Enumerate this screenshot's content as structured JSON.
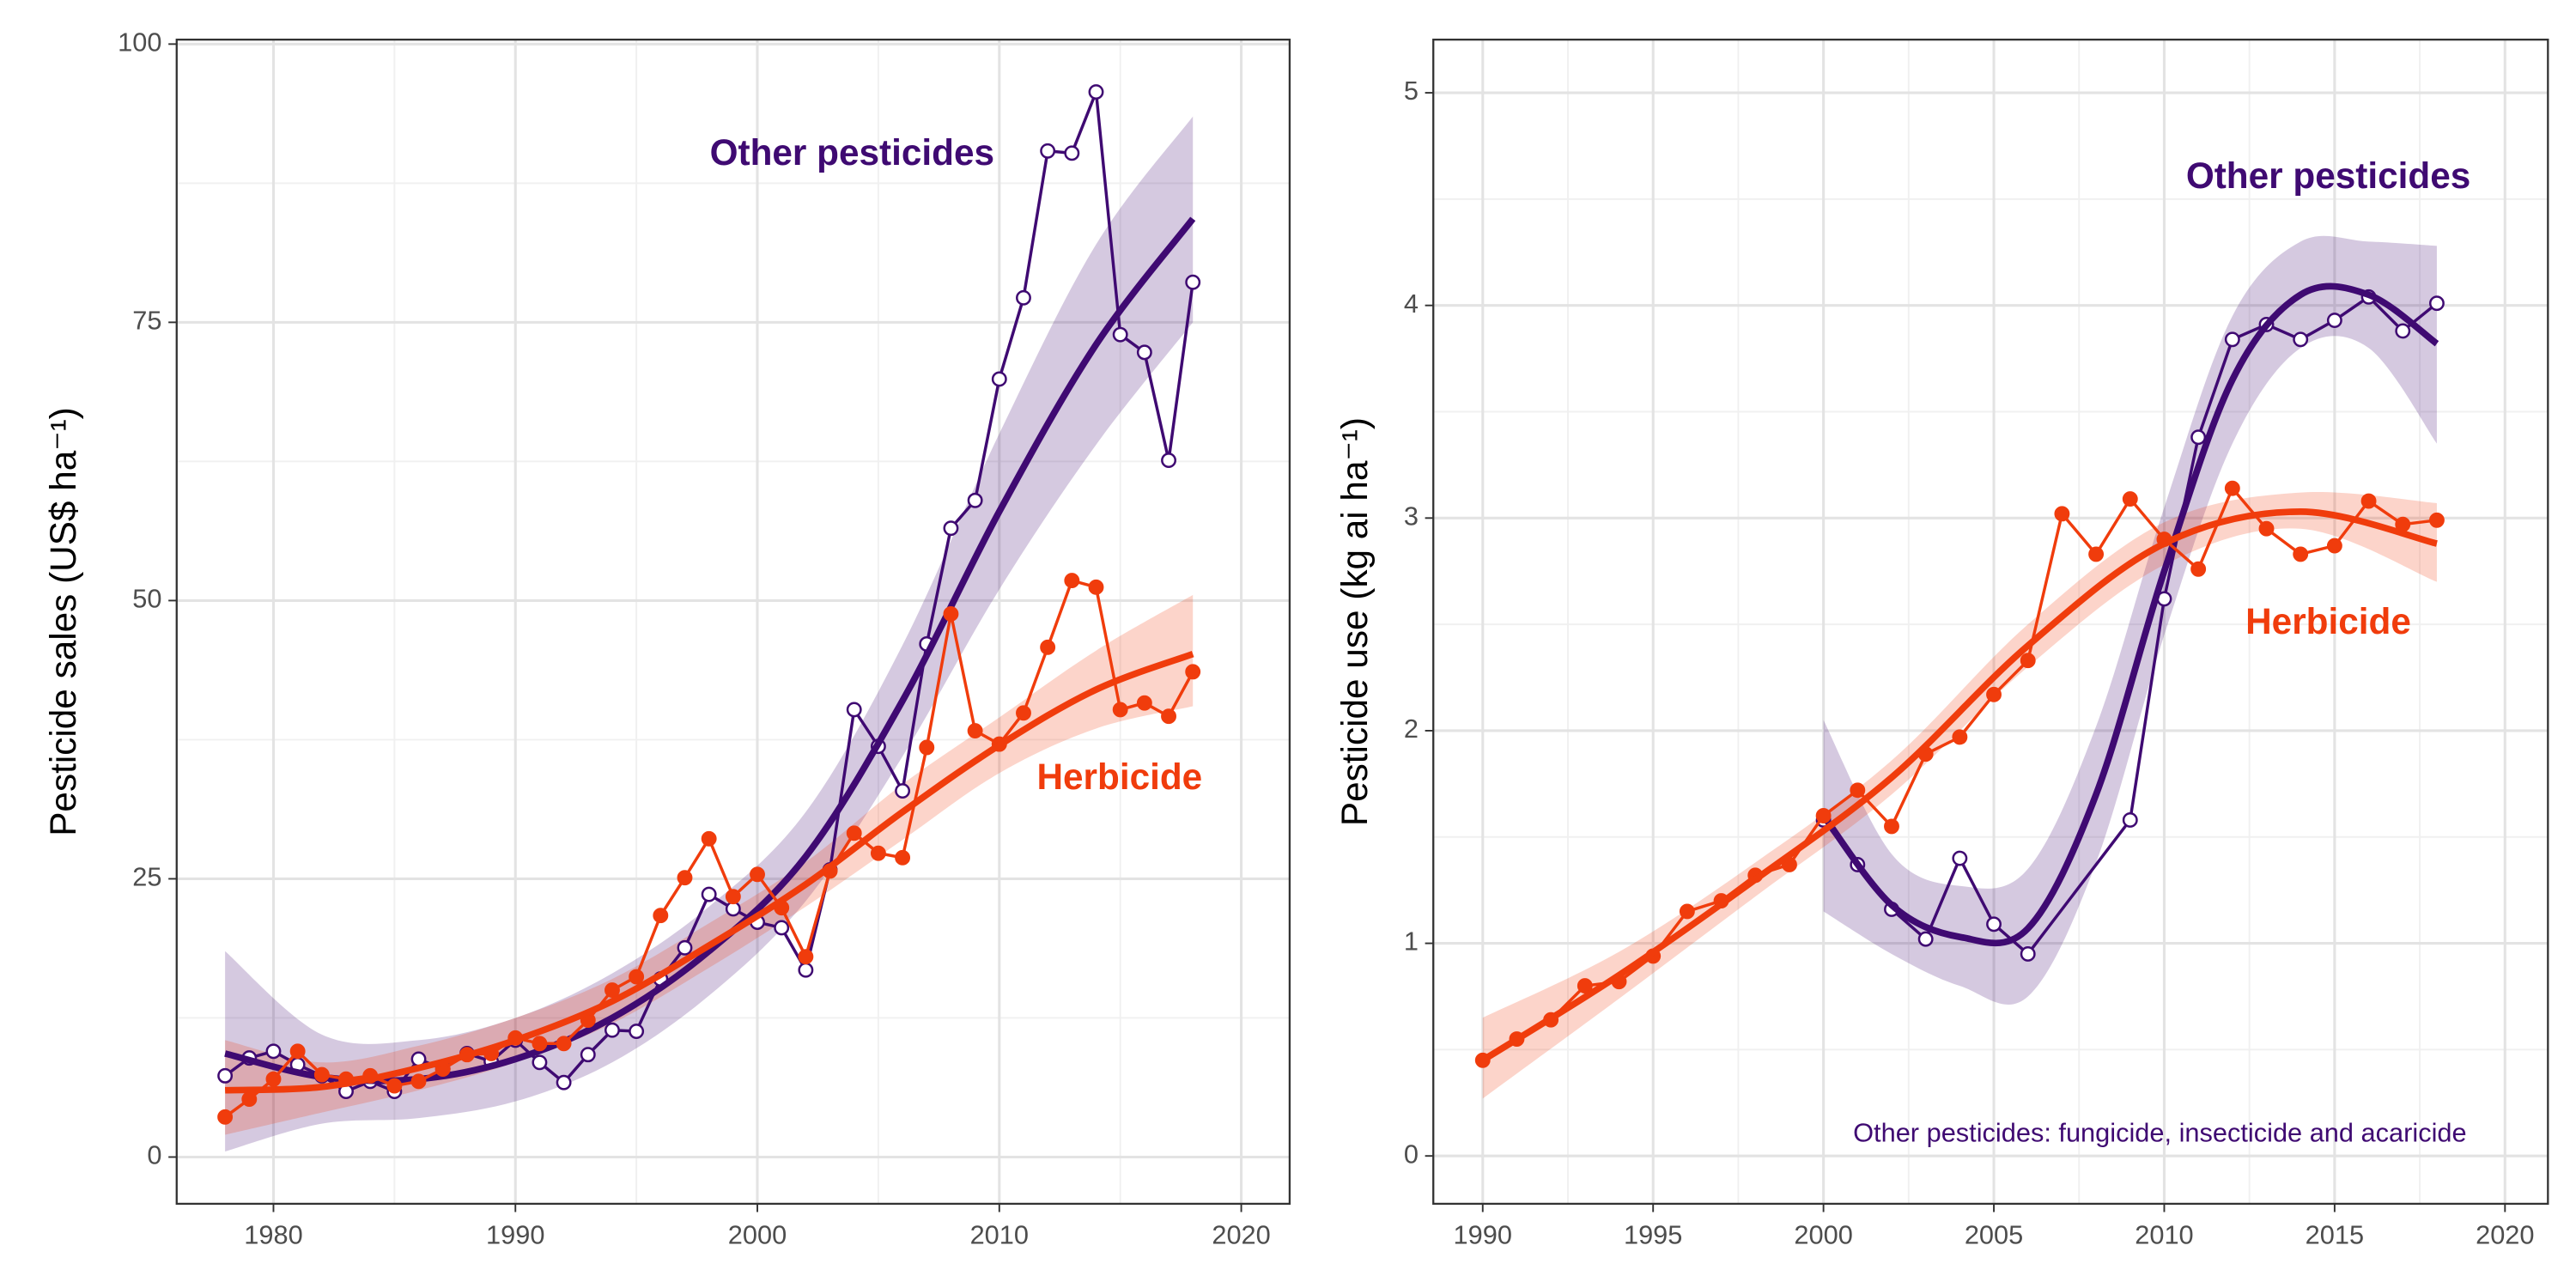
{
  "chart_data": [
    {
      "type": "line",
      "y_label": "Pesticide sales (US$ ha⁻¹)",
      "xlim": [
        1976,
        2022
      ],
      "xticks": [
        1980,
        1990,
        2000,
        2010,
        2020
      ],
      "ylim": [
        -4.2,
        100.4
      ],
      "yticks": [
        0,
        25,
        50,
        75,
        100
      ],
      "grid": true,
      "series": [
        {
          "name": "Other pesticides",
          "color": "#3f0a72",
          "marker": "open",
          "x": [
            1978,
            1979,
            1980,
            1981,
            1982,
            1983,
            1984,
            1985,
            1986,
            1987,
            1988,
            1989,
            1990,
            1991,
            1992,
            1993,
            1994,
            1995,
            1996,
            1997,
            1998,
            1999,
            2000,
            2001,
            2002,
            2003,
            2004,
            2005,
            2006,
            2007,
            2008,
            2009,
            2010,
            2011,
            2012,
            2013,
            2014,
            2015,
            2016,
            2017,
            2018
          ],
          "values": [
            7.3,
            8.9,
            9.5,
            8.3,
            7.3,
            5.9,
            6.8,
            5.9,
            8.8,
            7.9,
            9.3,
            8.6,
            10.5,
            8.5,
            6.7,
            9.2,
            11.4,
            11.3,
            16,
            18.8,
            23.6,
            22.3,
            21.1,
            20.6,
            16.8,
            25.8,
            40.2,
            36.9,
            32.9,
            46.1,
            56.5,
            59,
            69.9,
            77.2,
            90.4,
            90.2,
            95.7,
            73.9,
            72.3,
            62.6,
            78.6
          ],
          "fit_x": [
            1978,
            1982,
            1986,
            1990,
            1994,
            1998,
            2002,
            2006,
            2010,
            2014,
            2018
          ],
          "fit": [
            9.3,
            7.2,
            7.0,
            8.8,
            12.5,
            18.5,
            27,
            41,
            58,
            73,
            84.3
          ],
          "fit_lower": [
            0.5,
            3,
            3.5,
            5,
            8.5,
            14.5,
            23,
            36,
            51,
            64,
            75
          ],
          "fit_upper": [
            18.5,
            11,
            10.5,
            12.5,
            16.5,
            22.5,
            31,
            46,
            65,
            82,
            93.5
          ]
        },
        {
          "name": "Herbicide",
          "color": "#f03c0c",
          "marker": "filled",
          "x": [
            1978,
            1979,
            1980,
            1981,
            1982,
            1983,
            1984,
            1985,
            1986,
            1987,
            1988,
            1989,
            1990,
            1991,
            1992,
            1993,
            1994,
            1995,
            1996,
            1997,
            1998,
            1999,
            2000,
            2001,
            2002,
            2003,
            2004,
            2005,
            2006,
            2007,
            2008,
            2009,
            2010,
            2011,
            2012,
            2013,
            2014,
            2015,
            2016,
            2017,
            2018
          ],
          "values": [
            3.6,
            5.2,
            7,
            9.5,
            7.4,
            7,
            7.3,
            6.4,
            6.8,
            7.9,
            9.2,
            9.3,
            10.7,
            10.2,
            10.2,
            12.3,
            15,
            16.2,
            21.7,
            25.1,
            28.6,
            23.4,
            25.4,
            22.4,
            18,
            25.7,
            29.1,
            27.3,
            26.9,
            36.8,
            48.8,
            38.3,
            37.1,
            39.9,
            45.8,
            51.8,
            51.2,
            40.2,
            40.8,
            39.6,
            43.6
          ],
          "fit_x": [
            1978,
            1982,
            1986,
            1990,
            1994,
            1998,
            2002,
            2006,
            2010,
            2014,
            2018
          ],
          "fit": [
            6,
            6.3,
            8,
            10.5,
            14,
            19,
            24.5,
            31,
            37,
            42,
            45.2
          ],
          "fit_lower": [
            2,
            4,
            6,
            8.5,
            12,
            17,
            22.5,
            28.5,
            34.5,
            38.5,
            40.5
          ],
          "fit_upper": [
            10.5,
            8.5,
            10,
            12.5,
            16,
            21,
            26.5,
            33.5,
            39.5,
            45.5,
            50.5
          ]
        }
      ]
    },
    {
      "type": "line",
      "y_label": "Pesticide use (kg ai ha⁻¹)",
      "xlim": [
        1988.55,
        2021.26
      ],
      "xticks": [
        1990,
        1995,
        2000,
        2005,
        2010,
        2015,
        2020
      ],
      "ylim": [
        -0.225,
        5.25
      ],
      "yticks": [
        0,
        1,
        2,
        3,
        4,
        5
      ],
      "grid": true,
      "note": "Other pesticides: fungicide, insecticide and acaricide",
      "series": [
        {
          "name": "Other pesticides",
          "color": "#3f0a72",
          "marker": "open",
          "x": [
            2000,
            2001,
            2002,
            2003,
            2004,
            2005,
            2006,
            2009,
            2010,
            2011,
            2012,
            2013,
            2014,
            2015,
            2016,
            2017,
            2018
          ],
          "values": [
            1.58,
            1.37,
            1.16,
            1.02,
            1.4,
            1.09,
            0.95,
            1.58,
            2.62,
            3.38,
            3.84,
            3.91,
            3.84,
            3.93,
            4.04,
            3.88,
            4.01
          ],
          "fit_x": [
            2000,
            2002,
            2004,
            2006,
            2008,
            2010,
            2012,
            2014,
            2016,
            2018
          ],
          "fit": [
            1.6,
            1.18,
            1.03,
            1.07,
            1.7,
            2.75,
            3.65,
            4.05,
            4.05,
            3.82
          ],
          "fit_lower": [
            1.15,
            0.95,
            0.8,
            0.75,
            1.38,
            2.45,
            3.35,
            3.8,
            3.8,
            3.35
          ],
          "fit_upper": [
            2.05,
            1.42,
            1.27,
            1.35,
            2.02,
            3.05,
            3.95,
            4.3,
            4.3,
            4.28
          ]
        },
        {
          "name": "Herbicide",
          "color": "#f03c0c",
          "marker": "filled",
          "x": [
            1990,
            1991,
            1992,
            1993,
            1994,
            1995,
            1996,
            1997,
            1998,
            1999,
            2000,
            2001,
            2002,
            2003,
            2004,
            2005,
            2006,
            2007,
            2008,
            2009,
            2010,
            2011,
            2012,
            2013,
            2014,
            2015,
            2016,
            2017,
            2018
          ],
          "values": [
            0.45,
            0.55,
            0.64,
            0.8,
            0.82,
            0.94,
            1.15,
            1.2,
            1.32,
            1.37,
            1.6,
            1.72,
            1.55,
            1.89,
            1.97,
            2.17,
            2.33,
            3.02,
            2.83,
            3.09,
            2.9,
            2.76,
            3.14,
            2.95,
            2.83,
            2.87,
            3.08,
            2.97,
            2.99
          ],
          "fit_x": [
            1990,
            1994,
            1998,
            2002,
            2006,
            2010,
            2014,
            2018
          ],
          "fit": [
            0.45,
            0.85,
            1.3,
            1.78,
            2.4,
            2.88,
            3.03,
            2.88
          ],
          "fit_lower": [
            0.27,
            0.74,
            1.22,
            1.7,
            2.3,
            2.78,
            2.95,
            2.7
          ],
          "fit_upper": [
            0.65,
            0.96,
            1.38,
            1.86,
            2.5,
            2.98,
            3.12,
            3.07
          ]
        }
      ]
    }
  ]
}
